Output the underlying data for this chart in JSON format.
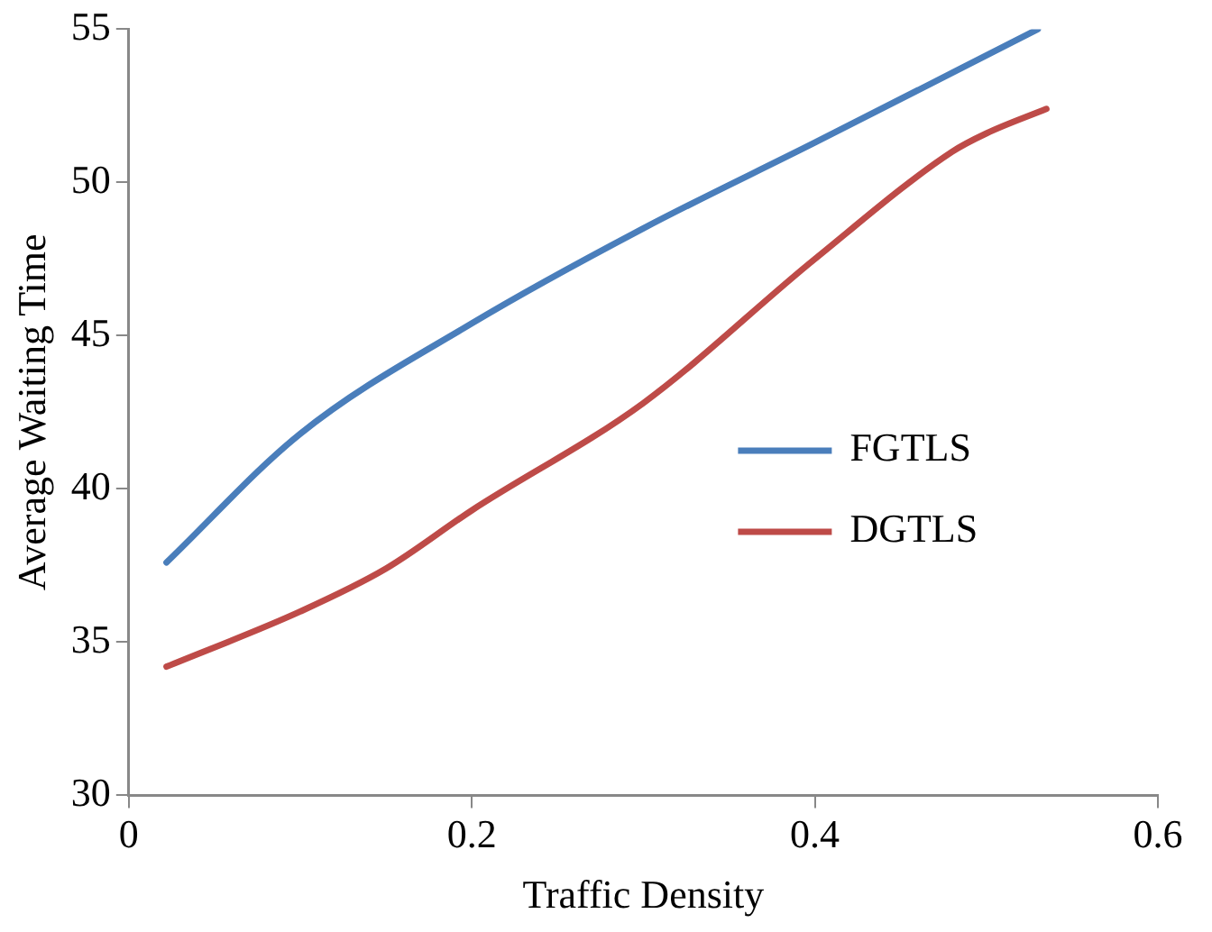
{
  "chart_data": {
    "type": "line",
    "xlabel": "Traffic Density",
    "ylabel": "Average Waiting Time",
    "xlim": [
      0,
      0.6
    ],
    "xticks": [
      {
        "value": 0,
        "label": "0"
      },
      {
        "value": 0.2,
        "label": "0.2"
      },
      {
        "value": 0.4,
        "label": "0.4"
      },
      {
        "value": 0.6,
        "label": "0.6"
      }
    ],
    "ylim": [
      30,
      55
    ],
    "yticks": [
      30,
      35,
      40,
      45,
      50,
      55
    ],
    "grid": false,
    "legend": "right",
    "marker": "none",
    "line_style": "solid",
    "series": [
      {
        "name": "FGTLS",
        "color": "#4a7ebb",
        "x": [
          0.022,
          0.1,
          0.2,
          0.3,
          0.4,
          0.53
        ],
        "values": [
          37.6,
          41.8,
          45.4,
          48.5,
          51.3,
          55
        ]
      },
      {
        "name": "DGTLS",
        "color": "#be4b48",
        "x": [
          0.022,
          0.1,
          0.15,
          0.2,
          0.3,
          0.4,
          0.48,
          0.5,
          0.535
        ],
        "values": [
          34.2,
          36.0,
          37.4,
          39.3,
          42.8,
          47.5,
          51.0,
          51.6,
          52.4
        ]
      }
    ]
  }
}
